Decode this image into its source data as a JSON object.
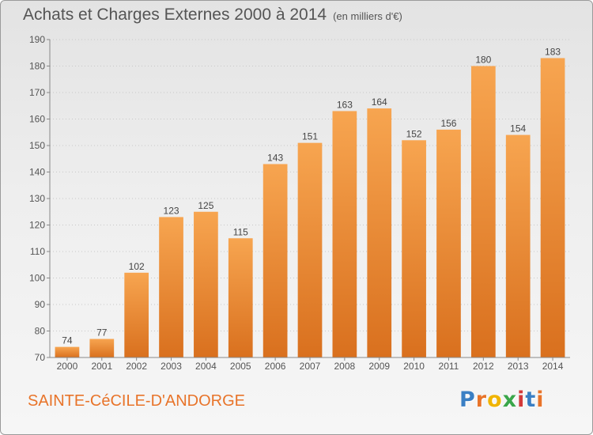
{
  "header": {
    "title": "Achats et Charges Externes 2000 à 2014",
    "unit": "(en milliers d'€)"
  },
  "footer": {
    "place": "SAINTE-CéCILE-D'ANDORGE",
    "logo": "Proxiti",
    "logo_colors": [
      "#3a7fc4",
      "#e8742a",
      "#f0b400",
      "#3aa64a",
      "#d33a3a",
      "#3a7fc4",
      "#e8742a"
    ]
  },
  "chart_data": {
    "type": "bar",
    "title": "Achats et Charges Externes 2000 à 2014",
    "subtitle": "(en milliers d'€)",
    "categories": [
      "2000",
      "2001",
      "2002",
      "2003",
      "2004",
      "2005",
      "2006",
      "2007",
      "2008",
      "2009",
      "2010",
      "2011",
      "2012",
      "2013",
      "2014"
    ],
    "values": [
      74,
      77,
      102,
      123,
      125,
      115,
      143,
      151,
      163,
      164,
      152,
      156,
      180,
      154,
      183
    ],
    "ylim": [
      70,
      190
    ],
    "yticks": [
      70,
      80,
      90,
      100,
      110,
      120,
      130,
      140,
      150,
      160,
      170,
      180,
      190
    ],
    "grid": true,
    "bar_color_top": "#f7a550",
    "bar_color_bottom": "#d9701e",
    "xlabel": "",
    "ylabel": ""
  }
}
